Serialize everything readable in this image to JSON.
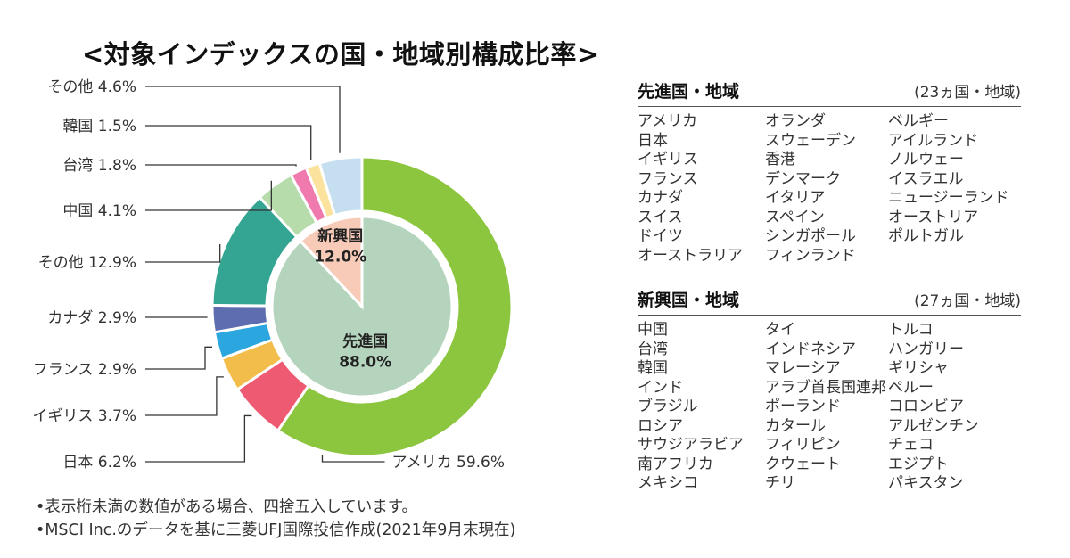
{
  "title": "<対象インデックスの国・地域別構成比率>",
  "chart_data": {
    "type": "pie",
    "title": "<対象インデックスの国・地域別構成比率>",
    "outer_ring": [
      {
        "label": "アメリカ",
        "value": 59.6,
        "display": "アメリカ 59.6%",
        "color": "#8cc63f"
      },
      {
        "label": "日本",
        "value": 6.2,
        "display": "日本 6.2%",
        "color": "#ee5a72"
      },
      {
        "label": "イギリス",
        "value": 3.7,
        "display": "イギリス 3.7%",
        "color": "#f2bd4a"
      },
      {
        "label": "フランス",
        "value": 2.9,
        "display": "フランス 2.9%",
        "color": "#2ba6de"
      },
      {
        "label": "カナダ",
        "value": 2.9,
        "display": "カナダ 2.9%",
        "color": "#5d6db0"
      },
      {
        "label": "その他",
        "value": 12.9,
        "display": "その他 12.9%",
        "color": "#35a593"
      },
      {
        "label": "中国",
        "value": 4.1,
        "display": "中国 4.1%",
        "color": "#b5dcaa"
      },
      {
        "label": "台湾",
        "value": 1.8,
        "display": "台湾 1.8%",
        "color": "#f07aae"
      },
      {
        "label": "韓国",
        "value": 1.5,
        "display": "韓国 1.5%",
        "color": "#fbe39e"
      },
      {
        "label": "その他",
        "value": 4.6,
        "display": "その他 4.6%",
        "color": "#c6dff0"
      }
    ],
    "inner_ring": [
      {
        "label": "先進国",
        "value": 88.0,
        "display": "88.0%",
        "color": "#b5d4bd"
      },
      {
        "label": "新興国",
        "value": 12.0,
        "display": "12.0%",
        "color": "#f7cbb8"
      }
    ],
    "start_angle_deg": 0,
    "direction": "clockwise",
    "legend": "none"
  },
  "regions": {
    "developed": {
      "title": "先進国・地域",
      "count": "(23ヵ国・地域)",
      "columns": [
        [
          "アメリカ",
          "日本",
          "イギリス",
          "フランス",
          "カナダ",
          "スイス",
          "ドイツ",
          "オーストラリア"
        ],
        [
          "オランダ",
          "スウェーデン",
          "香港",
          "デンマーク",
          "イタリア",
          "スペイン",
          "シンガポール",
          "フィンランド"
        ],
        [
          "ベルギー",
          "アイルランド",
          "ノルウェー",
          "イスラエル",
          "ニュージーランド",
          "オーストリア",
          "ポルトガル"
        ]
      ]
    },
    "emerging": {
      "title": "新興国・地域",
      "count": "(27ヵ国・地域)",
      "columns": [
        [
          "中国",
          "台湾",
          "韓国",
          "インド",
          "ブラジル",
          "ロシア",
          "サウジアラビア",
          "南アフリカ",
          "メキシコ"
        ],
        [
          "タイ",
          "インドネシア",
          "マレーシア",
          "アラブ首長国連邦",
          "ポーランド",
          "カタール",
          "フィリピン",
          "クウェート",
          "チリ"
        ],
        [
          "トルコ",
          "ハンガリー",
          "ギリシャ",
          "ペルー",
          "コロンビア",
          "アルゼンチン",
          "チェコ",
          "エジプト",
          "パキスタン"
        ]
      ]
    }
  },
  "notes": [
    "•表示桁未満の数値がある場合、四捨五入しています。",
    "•MSCI Inc.のデータを基に三菱UFJ国際投信作成(2021年9月末現在)"
  ]
}
